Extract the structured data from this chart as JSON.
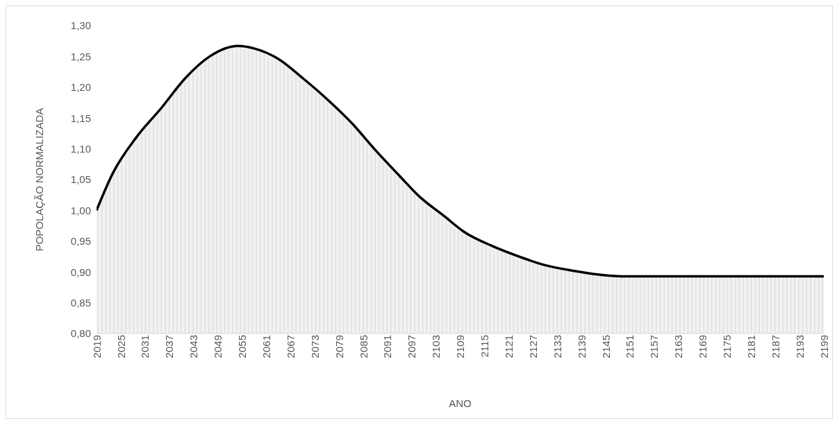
{
  "chart_data": {
    "type": "area",
    "xlabel": "ANO",
    "ylabel": "POPOLAÇÃO NORMALIZADA",
    "x": [
      2019,
      2023,
      2029,
      2035,
      2041,
      2047,
      2054,
      2058,
      2064,
      2070,
      2076,
      2082,
      2088,
      2094,
      2099,
      2105,
      2110,
      2117,
      2124,
      2130,
      2137,
      2143,
      2149,
      2160,
      2175,
      2190,
      2199
    ],
    "series": [
      {
        "color": "#000000",
        "values": [
          1.0,
          1.06,
          1.12,
          1.166,
          1.215,
          1.25,
          1.267,
          1.263,
          1.246,
          1.215,
          1.181,
          1.143,
          1.098,
          1.056,
          1.022,
          0.991,
          0.965,
          0.942,
          0.924,
          0.911,
          0.902,
          0.896,
          0.893,
          0.893,
          0.893,
          0.893,
          0.893
        ]
      }
    ],
    "xlim": [
      2019,
      2199
    ],
    "xticks": [
      2019,
      2025,
      2031,
      2037,
      2043,
      2049,
      2055,
      2061,
      2067,
      2073,
      2079,
      2085,
      2091,
      2097,
      2103,
      2109,
      2115,
      2121,
      2127,
      2133,
      2139,
      2145,
      2151,
      2157,
      2163,
      2169,
      2175,
      2181,
      2187,
      2193,
      2199
    ],
    "ylim": [
      0.8,
      1.3
    ],
    "yticks": [
      {
        "value": 0.8,
        "label": "0,80"
      },
      {
        "value": 0.85,
        "label": "0,85"
      },
      {
        "value": 0.9,
        "label": "0,90"
      },
      {
        "value": 0.95,
        "label": "0,95"
      },
      {
        "value": 1.0,
        "label": "1,00"
      },
      {
        "value": 1.05,
        "label": "1,05"
      },
      {
        "value": 1.1,
        "label": "1,10"
      },
      {
        "value": 1.15,
        "label": "1,15"
      },
      {
        "value": 1.2,
        "label": "1,20"
      },
      {
        "value": 1.25,
        "label": "1,25"
      },
      {
        "value": 1.3,
        "label": "1,30"
      }
    ],
    "grid": false
  }
}
